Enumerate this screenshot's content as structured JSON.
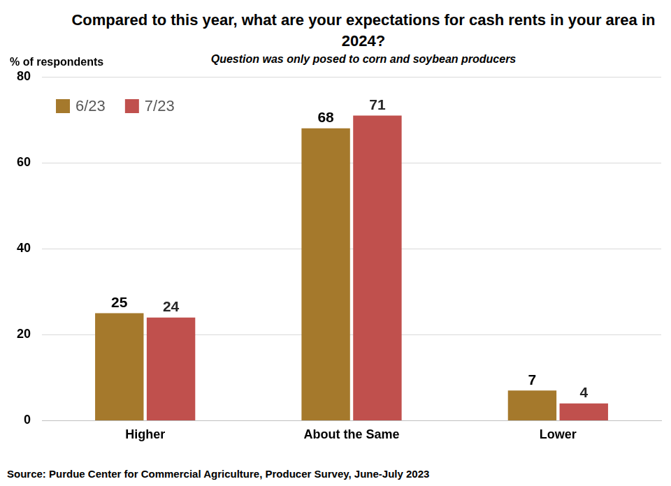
{
  "chart_data": {
    "type": "bar",
    "title": "Compared to this year, what are your expectations for cash rents in your area in 2024?",
    "subtitle": "Question was only posed to corn and soybean producers",
    "y_label": "% of respondents",
    "source": "Source: Purdue Center for Commercial Agriculture, Producer Survey, June-July 2023",
    "categories": [
      "Higher",
      "About the Same",
      "Lower"
    ],
    "series": [
      {
        "name": "6/23",
        "color": "#a5792c",
        "values": [
          25,
          68,
          7
        ]
      },
      {
        "name": "7/23",
        "color": "#c0504d",
        "values": [
          24,
          71,
          4
        ]
      }
    ],
    "ylim": [
      0,
      80
    ],
    "yticks": [
      0,
      20,
      40,
      60,
      80
    ],
    "grid": true,
    "legend": "top-left",
    "data_labels": true
  }
}
